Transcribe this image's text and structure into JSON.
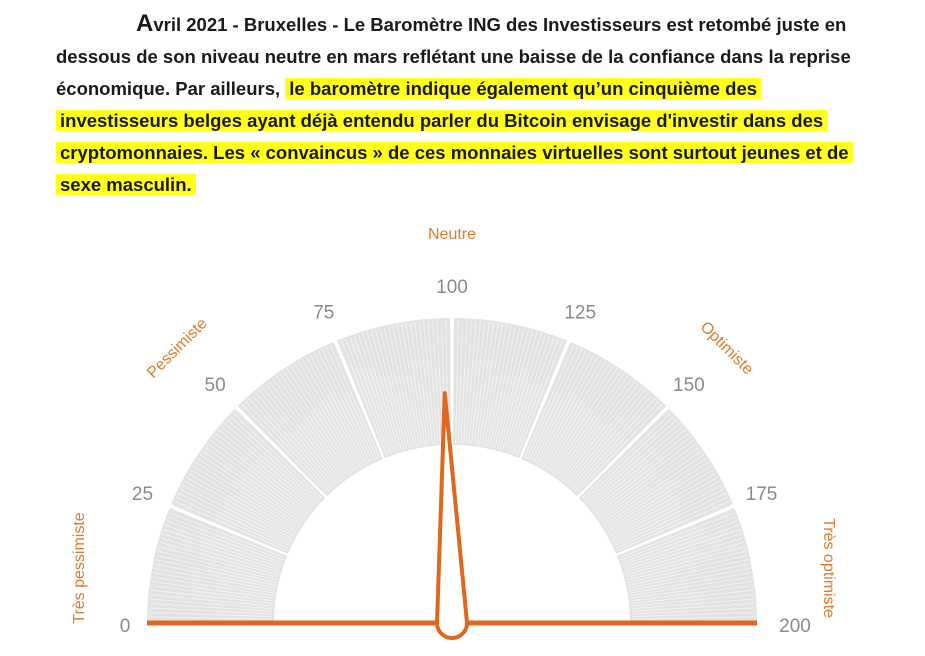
{
  "article": {
    "dropcap": "A",
    "lead": "vril 2021 - Bruxelles - Le Baromètre ING des Investisseurs est retombé juste en dessous de son niveau neutre en mars reflétant une baisse de la confiance dans la reprise économique. Par ailleurs, ",
    "highlight": "le baromètre indique également qu’un cinquième des investisseurs belges ayant déjà entendu parler du Bitcoin envisage d'investir dans des cryptomonnaies. Les « convaincus » de ces monnaies virtuelles sont surtout jeunes et de sexe masculin.",
    "highlight_color": "#ffff1a"
  },
  "chart_data": {
    "type": "gauge",
    "min": 0,
    "max": 200,
    "value": 98,
    "ticks": [
      0,
      25,
      50,
      75,
      100,
      125,
      150,
      175,
      200
    ],
    "tick_labels": [
      "0",
      "25",
      "50",
      "75",
      "100",
      "125",
      "150",
      "175",
      "200"
    ],
    "zones": [
      {
        "label": "Très pessimiste",
        "value": 0
      },
      {
        "label": "Pessimiste",
        "value": 50
      },
      {
        "label": "Neutre",
        "value": 100
      },
      {
        "label": "Optimiste",
        "value": 150
      },
      {
        "label": "Très optimiste",
        "value": 200
      }
    ],
    "needle_color": "#e0671c",
    "zone_label_color": "#e07b2e",
    "tick_label_color": "#8a8a8a",
    "arc_color": "#e3e3e3"
  }
}
